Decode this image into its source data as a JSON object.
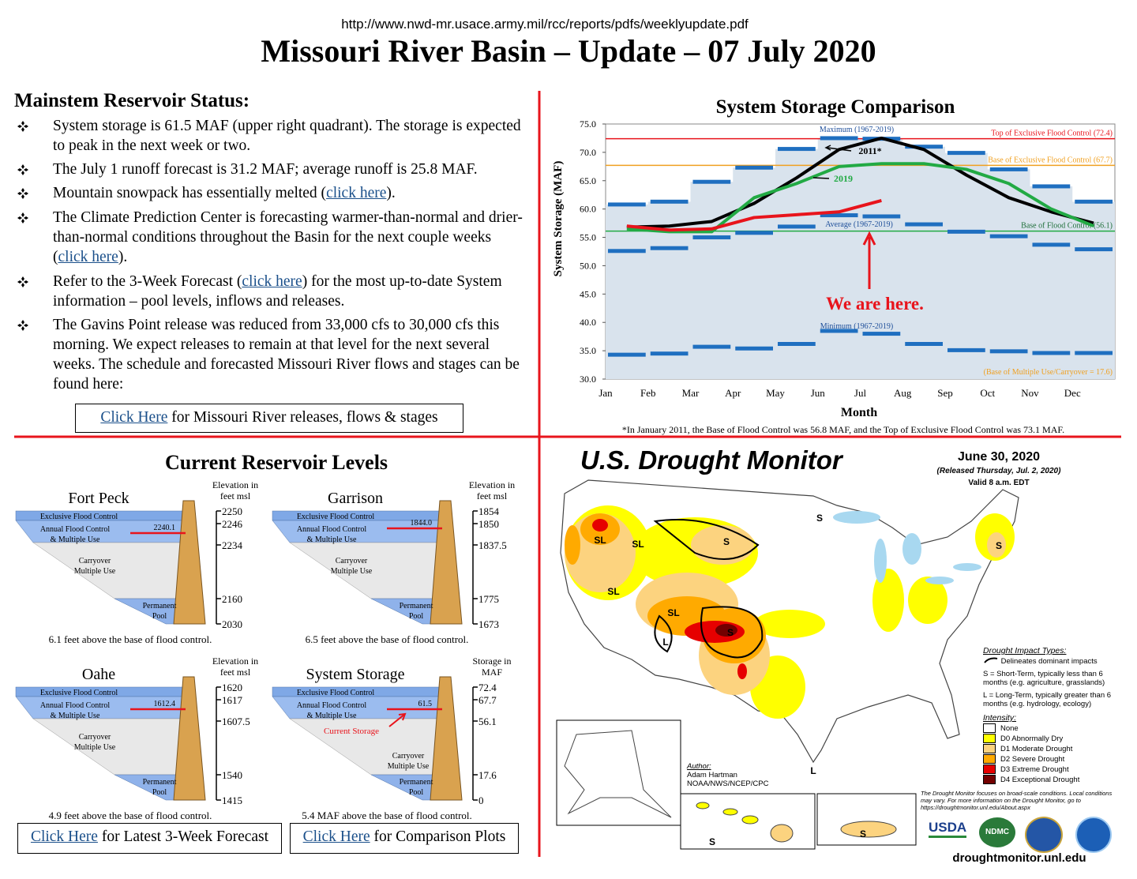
{
  "header": {
    "url": "http://www.nwd-mr.usace.army.mil/rcc/reports/pdfs/weeklyupdate.pdf",
    "title": "Missouri River Basin – Update – 07 July 2020"
  },
  "status": {
    "heading": "Mainstem Reservoir Status:",
    "bullets": [
      {
        "text": "System storage is 61.5 MAF (upper right quadrant). The storage is expected to peak in the next week or two."
      },
      {
        "text": "The July 1 runoff forecast is 31.2 MAF; average runoff is 25.8 MAF."
      },
      {
        "before": "Mountain snowpack has essentially melted (",
        "link": "click here",
        "after": ")."
      },
      {
        "before": "The Climate Prediction Center is forecasting warmer-than-normal and drier-than-normal conditions throughout the Basin for the next couple weeks (",
        "link": "click here",
        "after": ")."
      },
      {
        "before": "Refer to the 3-Week Forecast (",
        "link": "click here",
        "after": ") for the most up-to-date System information – pool levels, inflows and releases."
      },
      {
        "text": "The Gavins Point release was reduced from 33,000 cfs to 30,000 cfs this morning.  We expect releases to remain at that level for the next several weeks.  The schedule and forecasted Missouri River flows and stages can be found here:"
      }
    ],
    "button": {
      "link": "Click Here",
      "rest": "for Missouri River releases, flows & stages"
    }
  },
  "chart_data": {
    "type": "line",
    "title": "System Storage Comparison",
    "x_label": "Month",
    "y_label": "System Storage (MAF)",
    "categories": [
      "Jan",
      "Feb",
      "Mar",
      "Apr",
      "May",
      "Jun",
      "Jul",
      "Aug",
      "Sep",
      "Oct",
      "Nov",
      "Dec"
    ],
    "ylim": [
      30,
      75
    ],
    "yticks": [
      {
        "value": 30,
        "label": "30.0"
      },
      {
        "value": 35,
        "label": "35.0"
      },
      {
        "value": 40,
        "label": "40.0"
      },
      {
        "value": 45,
        "label": "45.0"
      },
      {
        "value": 50,
        "label": "50.0"
      },
      {
        "value": 55,
        "label": "55.0"
      },
      {
        "value": 60,
        "label": "60.0"
      },
      {
        "value": 65,
        "label": "65.0"
      },
      {
        "value": 70,
        "label": "70.0"
      },
      {
        "value": 75,
        "label": "75.0"
      }
    ],
    "series": [
      {
        "name": "Maximum (1967-2019)",
        "kind": "step",
        "color": "#1f6fc0",
        "values": [
          60.8,
          61.3,
          64.8,
          67.3,
          70.6,
          72.5,
          72.4,
          71,
          69.9,
          67,
          64,
          61.3
        ]
      },
      {
        "name": "Average (1967-2019)",
        "kind": "step",
        "color": "#1f6fc0",
        "values": [
          52.6,
          53.1,
          55,
          55.8,
          56.9,
          58.9,
          58.7,
          57.3,
          56,
          55.2,
          53.7,
          52.9
        ]
      },
      {
        "name": "Minimum (1967-2019)",
        "kind": "step",
        "color": "#1f6fc0",
        "values": [
          34.3,
          34.5,
          35.7,
          35.4,
          36.2,
          38.5,
          38,
          36.2,
          35.1,
          34.9,
          34.6,
          34.6
        ]
      },
      {
        "name": "2011*",
        "kind": "line",
        "color": "#000000",
        "values": [
          56.8,
          57,
          57.8,
          61,
          65.5,
          70.5,
          72.5,
          70.5,
          66,
          62,
          59.5,
          57.5
        ]
      },
      {
        "name": "2019",
        "kind": "line",
        "color": "#22aa44",
        "values": [
          56.5,
          56,
          56,
          62,
          64.5,
          67.5,
          68,
          68,
          67,
          64.5,
          60,
          57
        ]
      },
      {
        "kind": "line",
        "color": "#e8141c",
        "values": [
          57,
          56.3,
          56.5,
          58.5,
          59,
          59.5,
          61.5,
          null,
          null,
          null,
          null,
          null
        ]
      }
    ],
    "reference_lines": [
      {
        "label": "Top of Exclusive Flood Control (72.4)",
        "value": 72.4,
        "color": "#e8141c"
      },
      {
        "label": "Base of Exclusive Flood Control (67.7)",
        "value": 67.7,
        "color": "#f0a020"
      },
      {
        "label": "Base of Flood Control (56.1)",
        "value": 56.1,
        "color": "#22aa44"
      },
      {
        "label": "(Base of Multiple Use/Carryover = 17.6)",
        "value": 17.6,
        "color": "#f0a020"
      }
    ],
    "annotation": "We are here.",
    "footnote": "*In January 2011, the Base of Flood Control was 56.8 MAF, and the Top of Exclusive Flood Control was 73.1 MAF."
  },
  "levels": {
    "title": "Current Reservoir Levels",
    "zones": {
      "exclusive": "Exclusive Flood Control",
      "annual": [
        "Annual Flood Control",
        "& Multiple Use"
      ],
      "carryover": [
        "Carryover",
        "Multiple Use"
      ],
      "permanent": [
        "Permanent",
        "Pool"
      ]
    },
    "current_storage": "Current Storage",
    "reservoirs": [
      {
        "name": "Fort Peck",
        "axis_label": [
          "Elevation in",
          "feet msl"
        ],
        "ticks": [
          2250,
          2246,
          2234,
          2160,
          2030
        ],
        "current": "2240.1",
        "note": "6.1 feet above the base of flood control."
      },
      {
        "name": "Garrison",
        "axis_label": [
          "Elevation in",
          "feet msl"
        ],
        "ticks": [
          1854,
          1850,
          1837.5,
          1775,
          1673
        ],
        "current": "1844.0",
        "note": "6.5 feet above the base of flood control."
      },
      {
        "name": "Oahe",
        "axis_label": [
          "Elevation in",
          "feet msl"
        ],
        "ticks": [
          1620,
          1617,
          1607.5,
          1540,
          1415
        ],
        "current": "1612.4",
        "note": "4.9 feet above the base of flood control."
      },
      {
        "name": "System Storage",
        "axis_label": [
          "Storage in",
          "MAF"
        ],
        "ticks": [
          72.4,
          67.7,
          56.1,
          17.6,
          0
        ],
        "current": "61.5",
        "note": "5.4 MAF above the base of flood control."
      }
    ],
    "buttons": [
      {
        "link": "Click Here",
        "rest": "for Latest 3-Week Forecast"
      },
      {
        "link": "Click Here",
        "rest": "for Comparison Plots"
      }
    ]
  },
  "drought": {
    "title": "U.S. Drought Monitor",
    "date": "June 30, 2020",
    "released": "(Released Thursday, Jul. 2, 2020)",
    "valid": "Valid 8 a.m. EDT",
    "impact_title": "Drought Impact Types:",
    "impact_line": "Delineates dominant impacts",
    "s_def": "S = Short-Term, typically less than 6 months (e.g. agriculture, grasslands)",
    "l_def": "L = Long-Term, typically greater than 6 months (e.g. hydrology, ecology)",
    "intensity_title": "Intensity:",
    "intensity": [
      {
        "label": "None",
        "color": "#ffffff"
      },
      {
        "label": "D0 Abnormally Dry",
        "color": "#ffff00"
      },
      {
        "label": "D1 Moderate Drought",
        "color": "#fcd37f"
      },
      {
        "label": "D2 Severe Drought",
        "color": "#ffaa00"
      },
      {
        "label": "D3 Extreme Drought",
        "color": "#e60000"
      },
      {
        "label": "D4 Exceptional Drought",
        "color": "#730000"
      }
    ],
    "author_label": "Author:",
    "author": "Adam Hartman",
    "author_org": "NOAA/NWS/NCEP/CPC",
    "disclaimer": "The Drought Monitor focuses on broad-scale conditions. Local conditions may vary. For more information on the Drought Monitor, go to https://droughtmonitor.unl.edu/About.aspx",
    "logos": [
      "USDA",
      "NDMC"
    ],
    "site": "droughtmonitor.unl.edu",
    "map_labels": [
      "SL",
      "SL",
      "S",
      "S",
      "SL",
      "SL",
      "L",
      "S",
      "L",
      "S",
      "S",
      "S"
    ]
  }
}
